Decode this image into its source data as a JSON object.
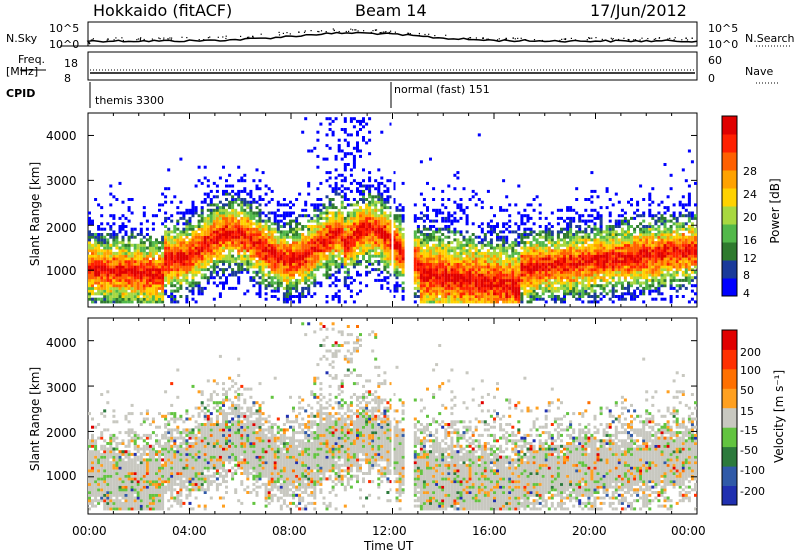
{
  "header": {
    "station": "Hokkaido (fitACF)",
    "beam": "Beam 14",
    "date": "17/Jun/2012"
  },
  "top_strip": {
    "nsky_label": "N.Sky",
    "nsky_ticks": [
      "10^5",
      "10^0"
    ],
    "nsearch_label": "N.Search",
    "nsearch_ticks": [
      "10^5",
      "10^0"
    ],
    "freq_label": "Freq.",
    "freq_unit": "[MHz]",
    "freq_ticks": [
      "18",
      "8"
    ],
    "nave_label": "Nave",
    "nave_ticks": [
      "60",
      "0"
    ],
    "cpid_label": "CPID",
    "cpid_segments": [
      {
        "start_hour": 0.15,
        "label": "themis 3300"
      },
      {
        "start_hour": 12.0,
        "label": "normal (fast) 151"
      }
    ]
  },
  "chart_data": [
    {
      "type": "heatmap",
      "parameter": "Power",
      "ylabel": "Slant Range [km]",
      "ylim": [
        180,
        4500
      ],
      "xlim": [
        0,
        24
      ],
      "yticks": [
        "1000",
        "2000",
        "3000",
        "4000"
      ],
      "colorbar": {
        "label": "Power [dB]",
        "ticks": [
          "28",
          "24",
          "20",
          "16",
          "12",
          "8",
          "4"
        ],
        "colors": [
          "#0000ff",
          "#1a3a9a",
          "#2e7a2e",
          "#52b84a",
          "#a8d840",
          "#ffd200",
          "#ffa200",
          "#ff6000",
          "#ff2000",
          "#e00000"
        ]
      }
    },
    {
      "type": "heatmap",
      "parameter": "Velocity",
      "ylabel": "Slant Range [km]",
      "ylim": [
        180,
        4500
      ],
      "xlim": [
        0,
        24
      ],
      "yticks": [
        "1000",
        "2000",
        "3000",
        "4000"
      ],
      "xlabel": "Time UT",
      "xticks": [
        "00:00",
        "04:00",
        "08:00",
        "12:00",
        "16:00",
        "20:00",
        "00:00"
      ],
      "colorbar": {
        "label": "Velocity [m s⁻¹]",
        "ticks": [
          "200",
          "100",
          "50",
          "15",
          "-15",
          "-50",
          "-100",
          "-200"
        ],
        "colors": [
          "#2030b0",
          "#305aa8",
          "#2c7a3c",
          "#62c440",
          "#c8c8c0",
          "#ffa020",
          "#ff7000",
          "#ff3000",
          "#e00000"
        ]
      }
    }
  ]
}
